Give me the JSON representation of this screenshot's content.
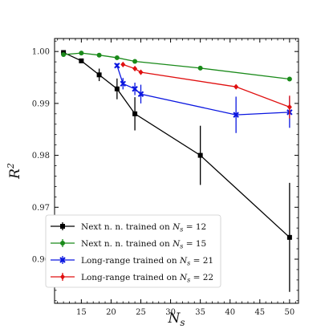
{
  "chart_data": {
    "type": "line",
    "xlabel_main": "N",
    "xlabel_sub": "s",
    "ylabel_main": "R",
    "ylabel_sup": "2",
    "xlim": [
      10.5,
      51.5
    ],
    "ylim": [
      0.9515,
      1.0025
    ],
    "xticks": [
      15,
      20,
      25,
      30,
      35,
      40,
      45,
      50
    ],
    "yticks": [
      0.96,
      0.97,
      0.98,
      0.99,
      1.0
    ],
    "ytick_labels": [
      "0.96",
      "0.97",
      "0.98",
      "0.99",
      "1.00"
    ],
    "legend_position": "lower-left",
    "series": [
      {
        "name_prefix": "Next n. n. trained on ",
        "name_sym": "N",
        "name_sub": "s",
        "name_suffix": " = 12",
        "color": "#000000",
        "marker": "square",
        "points": [
          {
            "x": 12,
            "y": 0.9998,
            "err": 0.0002
          },
          {
            "x": 15,
            "y": 0.9982,
            "err": 0.0003
          },
          {
            "x": 18,
            "y": 0.9955,
            "err": 0.0012
          },
          {
            "x": 21,
            "y": 0.9928,
            "err": 0.002
          },
          {
            "x": 24,
            "y": 0.988,
            "err": 0.0032
          },
          {
            "x": 35,
            "y": 0.98,
            "err": 0.0057
          },
          {
            "x": 50,
            "y": 0.9642,
            "err": 0.0105
          }
        ]
      },
      {
        "name_prefix": "Next n. n. trained on ",
        "name_sym": "N",
        "name_sub": "s",
        "name_suffix": " = 15",
        "color": "#1a8a1a",
        "marker": "circle",
        "points": [
          {
            "x": 12,
            "y": 0.9994,
            "err": 0.0002
          },
          {
            "x": 15,
            "y": 0.9997,
            "err": 0.0001
          },
          {
            "x": 18,
            "y": 0.9993,
            "err": 0.0001
          },
          {
            "x": 21,
            "y": 0.9988,
            "err": 0.0001
          },
          {
            "x": 24,
            "y": 0.9981,
            "err": 0.0001
          },
          {
            "x": 35,
            "y": 0.9968,
            "err": 0.0001
          },
          {
            "x": 50,
            "y": 0.9947,
            "err": 0.0001
          }
        ]
      },
      {
        "name_prefix": "Long-range trained on ",
        "name_sym": "N",
        "name_sub": "s",
        "name_suffix": " = 21",
        "color": "#0a16e0",
        "marker": "x",
        "points": [
          {
            "x": 21,
            "y": 0.9973,
            "err": 0.0004
          },
          {
            "x": 22,
            "y": 0.9938,
            "err": 0.0011
          },
          {
            "x": 24,
            "y": 0.9928,
            "err": 0.0012
          },
          {
            "x": 25,
            "y": 0.9918,
            "err": 0.0018
          },
          {
            "x": 41,
            "y": 0.9878,
            "err": 0.0035
          },
          {
            "x": 50,
            "y": 0.9883,
            "err": 0.003
          }
        ]
      },
      {
        "name_prefix": "Long-range trained on ",
        "name_sym": "N",
        "name_sub": "s",
        "name_suffix": " = 22",
        "color": "#e01010",
        "marker": "diamond",
        "points": [
          {
            "x": 22,
            "y": 0.9975,
            "err": 0.0002
          },
          {
            "x": 24,
            "y": 0.9967,
            "err": 0.0003
          },
          {
            "x": 25,
            "y": 0.996,
            "err": 0.0003
          },
          {
            "x": 41,
            "y": 0.9932,
            "err": 0.0004
          },
          {
            "x": 50,
            "y": 0.9893,
            "err": 0.0022
          }
        ]
      }
    ]
  }
}
